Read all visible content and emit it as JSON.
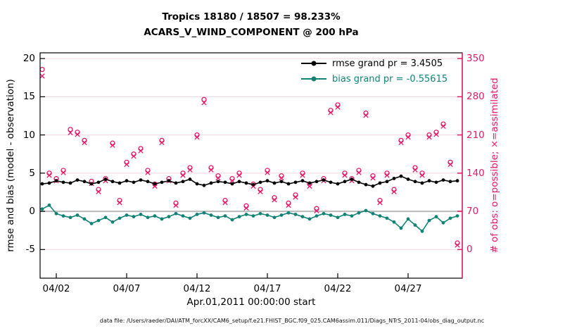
{
  "titles": {
    "line1": "Tropics 18180 / 18507 = 98.233%",
    "line2": "ACARS_V_WIND_COMPONENT @ 200 hPa"
  },
  "legend": {
    "items": [
      {
        "label": "rmse grand pr = 3.4505",
        "color": "#000000"
      },
      {
        "label": "bias grand pr = -0.55615",
        "color": "#128274"
      }
    ]
  },
  "axes": {
    "left": {
      "label": "rmse and bias (model - observation)",
      "ticks": [
        20,
        15,
        10,
        5,
        0,
        -5
      ],
      "lim": [
        -8.75,
        20.75
      ]
    },
    "right": {
      "label": "# of obs: o=possible; ×=assimilated",
      "ticks": [
        350,
        280,
        210,
        140,
        70,
        0
      ],
      "lim": [
        -52.5,
        360.5
      ]
    },
    "x": {
      "label": "Apr.01,2011 00:00:00 start",
      "tick_labels": [
        "04/02",
        "04/07",
        "04/12",
        "04/17",
        "04/22",
        "04/27"
      ],
      "tick_days": [
        2,
        7,
        12,
        17,
        22,
        27
      ],
      "lim": [
        0.85,
        30.85
      ]
    }
  },
  "footer": "data file: /Users/raeder/DAI/ATM_forcXX/CAM6_setup/f.e21.FHIST_BGC.f09_025.CAM6assim.011/Diags_NTrS_2011-04/obs_diag_output.nc",
  "colors": {
    "crimson": "#e3196a",
    "teal": "#128274",
    "black": "#000000",
    "grid_pink": "#f7d4e0",
    "zero_line_gray": "#b9b9b9"
  },
  "chart_data": {
    "type": "line+scatter",
    "region": "Tropics",
    "variable": "ACARS_V_WIND_COMPONENT",
    "level": "200 hPa",
    "obs_used": 18180,
    "obs_possible": 18507,
    "percent_used": 98.233,
    "rmse_grand_prior": 3.4505,
    "bias_grand_prior": -0.55615,
    "x_axis": "days of April 2011, 12-hourly bins",
    "x": [
      1,
      1.5,
      2,
      2.5,
      3,
      3.5,
      4,
      4.5,
      5,
      5.5,
      6,
      6.5,
      7,
      7.5,
      8,
      8.5,
      9,
      9.5,
      10,
      10.5,
      11,
      11.5,
      12,
      12.5,
      13,
      13.5,
      14,
      14.5,
      15,
      15.5,
      16,
      16.5,
      17,
      17.5,
      18,
      18.5,
      19,
      19.5,
      20,
      20.5,
      21,
      21.5,
      22,
      22.5,
      23,
      23.5,
      24,
      24.5,
      25,
      25.5,
      26,
      26.5,
      27,
      27.5,
      28,
      28.5,
      29,
      29.5,
      30,
      30.5
    ],
    "series": [
      {
        "name": "rmse",
        "axis": "left",
        "marker": "filled-circle",
        "color": "#000000",
        "values": [
          3.6,
          3.7,
          4.0,
          3.8,
          3.7,
          4.1,
          3.9,
          3.6,
          3.8,
          4.2,
          3.9,
          3.7,
          4.0,
          3.8,
          4.1,
          3.9,
          3.6,
          3.8,
          4.0,
          3.7,
          3.9,
          4.2,
          3.6,
          3.4,
          3.7,
          3.9,
          3.8,
          3.6,
          3.9,
          3.7,
          3.5,
          3.8,
          4.0,
          3.7,
          3.9,
          3.6,
          3.8,
          4.0,
          3.7,
          3.9,
          4.1,
          3.8,
          3.6,
          3.9,
          4.2,
          3.8,
          3.5,
          3.3,
          3.7,
          3.9,
          4.3,
          4.6,
          4.2,
          3.9,
          3.7,
          4.0,
          3.8,
          4.1,
          3.9,
          4.0
        ]
      },
      {
        "name": "bias",
        "axis": "left",
        "marker": "filled-circle",
        "color": "#128274",
        "values": [
          0.3,
          0.8,
          -0.3,
          -0.6,
          -0.8,
          -0.5,
          -1.0,
          -1.6,
          -1.2,
          -0.8,
          -1.4,
          -0.9,
          -0.5,
          -0.7,
          -0.4,
          -0.8,
          -0.6,
          -1.0,
          -0.7,
          -0.3,
          -0.6,
          -0.9,
          -0.4,
          -0.2,
          -0.5,
          -0.8,
          -0.6,
          -1.1,
          -0.7,
          -0.4,
          -0.6,
          -0.3,
          -0.5,
          -0.8,
          -0.5,
          -0.2,
          -0.4,
          -0.7,
          -1.0,
          -0.6,
          -0.3,
          -0.5,
          -0.8,
          -0.4,
          -0.6,
          -0.2,
          0.1,
          -0.3,
          -0.6,
          -0.9,
          -1.4,
          -2.2,
          -1.0,
          -1.8,
          -2.6,
          -1.2,
          -0.7,
          -1.5,
          -0.9,
          -0.6
        ]
      },
      {
        "name": "possible_obs",
        "axis": "right",
        "marker": "open-circle",
        "color": "#e3196a",
        "values": [
          330,
          140,
          130,
          145,
          220,
          215,
          200,
          125,
          110,
          130,
          195,
          90,
          160,
          175,
          185,
          145,
          120,
          200,
          130,
          85,
          140,
          150,
          210,
          275,
          150,
          135,
          90,
          130,
          140,
          80,
          120,
          110,
          145,
          95,
          135,
          85,
          100,
          140,
          120,
          75,
          130,
          255,
          265,
          140,
          130,
          145,
          250,
          135,
          90,
          140,
          110,
          200,
          210,
          150,
          140,
          210,
          215,
          230,
          160,
          12
        ]
      },
      {
        "name": "assimilated_obs",
        "axis": "right",
        "marker": "x-cross",
        "color": "#e3196a",
        "values": [
          318,
          136,
          126,
          141,
          214,
          211,
          196,
          121,
          106,
          126,
          191,
          86,
          156,
          171,
          181,
          141,
          116,
          196,
          126,
          81,
          136,
          146,
          206,
          269,
          146,
          131,
          86,
          126,
          136,
          76,
          116,
          106,
          141,
          91,
          131,
          81,
          96,
          136,
          116,
          71,
          126,
          251,
          261,
          136,
          126,
          141,
          246,
          131,
          86,
          136,
          106,
          196,
          206,
          146,
          136,
          206,
          211,
          226,
          156,
          8
        ]
      }
    ]
  }
}
